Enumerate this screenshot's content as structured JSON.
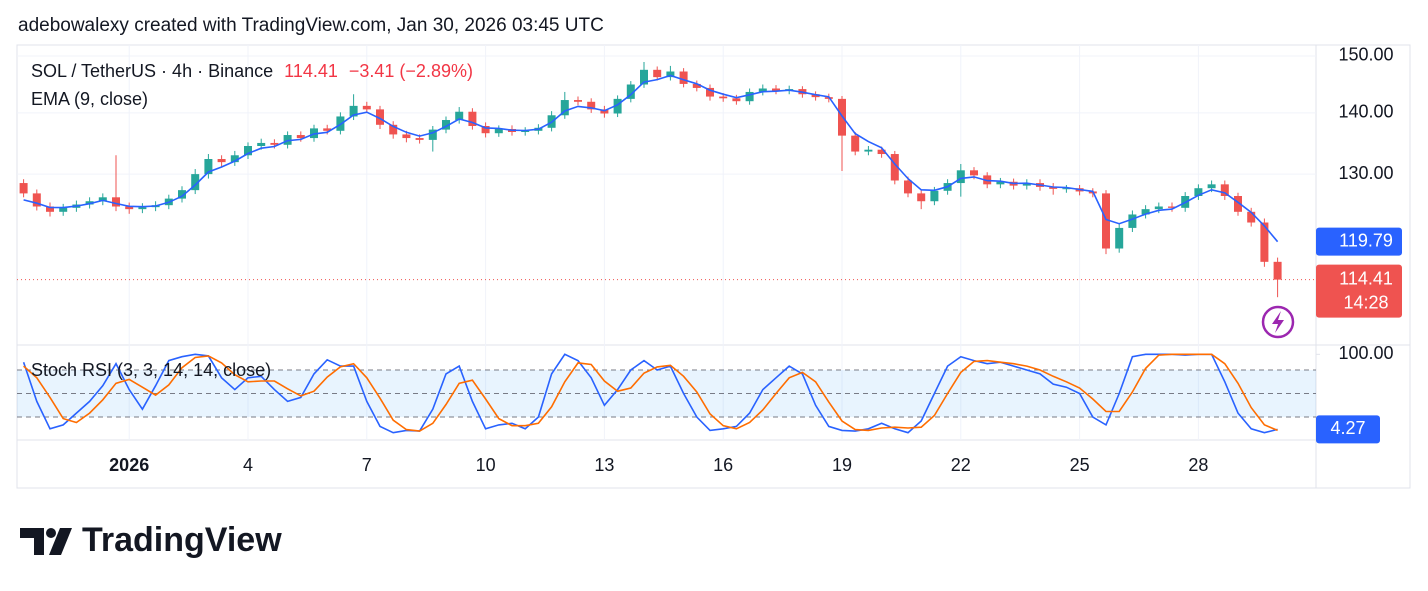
{
  "watermark": "adebowalexy created with TradingView.com, Jan 30, 2026 03:45 UTC",
  "brand": "TradingView",
  "chart_data": [
    {
      "type": "candlestick",
      "title": "SOL / TetherUS · 4h · Binance",
      "change": "−3.41 (−2.89%)",
      "countdown": "14:28",
      "log_scale": true,
      "grid": true,
      "up_color": "#26a69a",
      "down_color": "#ef5350",
      "categories": [
        null,
        null,
        null,
        null,
        null,
        null,
        null,
        null,
        "2026",
        null,
        null,
        null,
        null,
        null,
        null,
        null,
        null,
        "4",
        null,
        null,
        null,
        null,
        null,
        null,
        null,
        null,
        "7",
        null,
        null,
        null,
        null,
        null,
        null,
        null,
        null,
        "10",
        null,
        null,
        null,
        null,
        null,
        null,
        null,
        null,
        "13",
        null,
        null,
        null,
        null,
        null,
        null,
        null,
        null,
        "16",
        null,
        null,
        null,
        null,
        null,
        null,
        null,
        null,
        "19",
        null,
        null,
        null,
        null,
        null,
        null,
        null,
        null,
        "22",
        null,
        null,
        null,
        null,
        null,
        null,
        null,
        null,
        "25",
        null,
        null,
        null,
        null,
        null,
        null,
        null,
        null,
        "28",
        null,
        null,
        null,
        null,
        null,
        null
      ],
      "open": [
        128.6,
        127,
        125,
        124.2,
        124.8,
        125.3,
        125.8,
        126.4,
        125,
        124.6,
        124.9,
        125.2,
        126.2,
        127.5,
        130,
        132.4,
        131.9,
        133,
        134.5,
        135,
        134.7,
        136.3,
        135.8,
        137.4,
        137,
        139.4,
        141.2,
        140.6,
        138,
        136.4,
        135.8,
        135.5,
        137.2,
        138.8,
        140.2,
        137.8,
        136.6,
        137.3,
        136.8,
        137,
        137.5,
        139.6,
        142.2,
        141.9,
        140.6,
        139.9,
        142.4,
        144.9,
        147.5,
        146.2,
        147.2,
        145,
        144.3,
        142.8,
        142.5,
        142,
        143.6,
        144.2,
        143.8,
        144.1,
        143.2,
        142.7,
        142.4,
        136.2,
        133.6,
        133.9,
        133.2,
        129,
        127,
        125.8,
        127.4,
        128.6,
        130.6,
        129.8,
        128.4,
        128.8,
        128.2,
        128.6,
        128,
        127.7,
        127.8,
        127.3,
        127,
        118.8,
        121.8,
        123.8,
        124.6,
        125,
        124.8,
        126.6,
        127.8,
        128.4,
        126.6,
        124.2,
        122.6,
        116.9
      ],
      "high": [
        129.2,
        127.6,
        125.6,
        125.4,
        125.9,
        126.4,
        127,
        133,
        125.6,
        125.5,
        125.8,
        126.8,
        128.1,
        130.8,
        133.2,
        133,
        133.7,
        135.1,
        135.7,
        135.6,
        136.9,
        136.9,
        138,
        138,
        140.1,
        143.2,
        141.9,
        141.2,
        138.6,
        137,
        136.4,
        137.8,
        139.4,
        141,
        140.8,
        138.4,
        137.9,
        137.9,
        137.6,
        138.1,
        140.3,
        143.6,
        142.8,
        142.5,
        141.2,
        143,
        145.5,
        148.9,
        148.1,
        148.2,
        147.8,
        145.6,
        144.9,
        143.4,
        143.1,
        144.2,
        144.9,
        144.8,
        144.7,
        144.6,
        143.7,
        143.3,
        142.9,
        136.8,
        134.5,
        134.4,
        133.7,
        129.6,
        127.6,
        128,
        129.2,
        131.6,
        131.1,
        130.3,
        129.4,
        129.3,
        129.2,
        129.2,
        128.6,
        128.3,
        128.3,
        127.8,
        127.5,
        122.4,
        124.4,
        125.2,
        125.6,
        125.6,
        127.2,
        128.4,
        129,
        129,
        127.1,
        124.8,
        123.2,
        117.5
      ],
      "low": [
        126.4,
        124.4,
        123.5,
        123.6,
        124.2,
        124.7,
        125.2,
        124.3,
        123.9,
        124,
        124.3,
        124.6,
        125.6,
        126.9,
        129.3,
        131.2,
        131.3,
        132.4,
        133.9,
        134.1,
        134.1,
        135.2,
        135.2,
        136.4,
        136.4,
        138.8,
        140,
        137.3,
        135.7,
        135.1,
        134.9,
        133.6,
        136.6,
        138.2,
        137.2,
        135.9,
        136,
        136.2,
        136.2,
        136.4,
        136.9,
        139,
        141.3,
        140,
        139.2,
        139.3,
        141.8,
        144.3,
        145.6,
        145.6,
        144.4,
        143.7,
        142.1,
        141.9,
        141.4,
        141.4,
        143,
        143.2,
        143.2,
        142.6,
        142.1,
        141.8,
        130.5,
        133,
        133,
        132.6,
        128.4,
        126.4,
        124.6,
        125.2,
        126.8,
        126.5,
        129.2,
        127.8,
        127.8,
        127.6,
        127.6,
        127.4,
        126.8,
        127.1,
        126.7,
        126.4,
        118,
        118.2,
        121.2,
        123.2,
        124,
        124.2,
        124.2,
        126,
        127.2,
        126,
        123.6,
        122,
        116.2,
        112
      ],
      "close": [
        127,
        125,
        124.2,
        124.8,
        125.3,
        125.8,
        126.4,
        125,
        124.6,
        124.9,
        125.2,
        126.2,
        127.5,
        130,
        132.4,
        131.9,
        133,
        134.5,
        135,
        134.7,
        136.3,
        135.8,
        137.4,
        137,
        139.4,
        141.2,
        140.6,
        138,
        136.4,
        135.8,
        135.5,
        137.2,
        138.8,
        140.2,
        137.8,
        136.6,
        137.3,
        136.8,
        137,
        137.5,
        139.6,
        142.2,
        141.9,
        140.6,
        139.9,
        142.4,
        144.9,
        147.5,
        146.2,
        147.2,
        145,
        144.3,
        142.8,
        142.5,
        142,
        143.6,
        144.2,
        143.8,
        144.1,
        143.2,
        142.7,
        142.4,
        136.2,
        133.6,
        133.9,
        133.2,
        129,
        127,
        125.8,
        127.4,
        128.6,
        130.6,
        129.8,
        128.4,
        128.8,
        128.2,
        128.6,
        128,
        127.7,
        127.8,
        127.3,
        127,
        118.8,
        121.8,
        123.8,
        124.6,
        125,
        124.8,
        126.6,
        127.8,
        128.4,
        126.6,
        124.2,
        122.6,
        116.9,
        114.41
      ],
      "series": [
        {
          "name": "EMA (9, close)",
          "color": "#2962ff",
          "values": [
            126,
            125.5,
            124.85,
            124.83,
            125.06,
            125.43,
            125.92,
            125.46,
            125.03,
            124.97,
            125.08,
            125.64,
            126.57,
            128.29,
            130.34,
            131.12,
            132.06,
            133.28,
            134.14,
            134.42,
            135.36,
            135.58,
            136.49,
            136.75,
            138.07,
            139.64,
            140.12,
            139.06,
            137.73,
            136.76,
            136.13,
            136.67,
            137.73,
            138.97,
            138.38,
            137.49,
            137.4,
            137.1,
            137.05,
            137.27,
            138.44,
            140.32,
            141.11,
            140.85,
            140.38,
            141.39,
            143.14,
            145.32,
            145.76,
            146.48,
            145.74,
            145.02,
            143.91,
            143.21,
            142.6,
            143.1,
            143.65,
            143.73,
            143.91,
            143.56,
            143.13,
            142.76,
            139.48,
            136.54,
            135.22,
            134.21,
            131.6,
            129.3,
            127.55,
            127.48,
            128.04,
            129.32,
            129.56,
            128.98,
            128.89,
            128.55,
            128.57,
            128.29,
            127.99,
            127.9,
            127.6,
            127.3,
            123.05,
            122.42,
            123.11,
            123.86,
            124.43,
            124.61,
            125.61,
            126.7,
            127.55,
            127.08,
            125.64,
            124.12,
            122.1,
            119.79
          ]
        }
      ],
      "ylim": [
        105.7,
        152.0
      ],
      "yticks": [
        {
          "value": 130,
          "label": "130.00"
        },
        {
          "value": 140,
          "label": "140.00"
        },
        {
          "value": 150,
          "label": "150.00"
        }
      ]
    },
    {
      "type": "line",
      "title": "Stoch RSI (3, 3, 14, 14, close)",
      "band": [
        20,
        50,
        80
      ],
      "band_color": "#2196f3",
      "series": [
        {
          "color": "#2962ff",
          "values": [
            90,
            40,
            5,
            10,
            25,
            40,
            60,
            88,
            55,
            30,
            60,
            92,
            97,
            100,
            98,
            70,
            55,
            70,
            72,
            55,
            40,
            45,
            75,
            93,
            85,
            85,
            40,
            8,
            0,
            3,
            2,
            30,
            75,
            85,
            40,
            5,
            10,
            12,
            5,
            20,
            75,
            100,
            92,
            70,
            35,
            55,
            80,
            92,
            80,
            85,
            50,
            20,
            3,
            5,
            8,
            25,
            55,
            70,
            85,
            75,
            35,
            8,
            3,
            2,
            5,
            12,
            5,
            0,
            15,
            50,
            85,
            97,
            92,
            88,
            90,
            85,
            80,
            75,
            62,
            58,
            50,
            20,
            10,
            50,
            97,
            100,
            100,
            100,
            99,
            100,
            100,
            65,
            25,
            5,
            0,
            4.27
          ]
        },
        {
          "color": "#ff6d00",
          "values": [
            85,
            70,
            45,
            18,
            13,
            25,
            42,
            63,
            68,
            58,
            48,
            61,
            83,
            96,
            98,
            89,
            74,
            65,
            66,
            66,
            56,
            47,
            53,
            71,
            84,
            88,
            70,
            44,
            16,
            4,
            2,
            12,
            36,
            63,
            67,
            43,
            18,
            9,
            9,
            12,
            33,
            65,
            89,
            87,
            66,
            53,
            57,
            76,
            84,
            86,
            72,
            52,
            24,
            9,
            5,
            13,
            29,
            50,
            70,
            77,
            65,
            39,
            15,
            4,
            3,
            6,
            7,
            6,
            7,
            22,
            50,
            77,
            91,
            92,
            90,
            88,
            85,
            80,
            72,
            65,
            57,
            43,
            27,
            27,
            52,
            82,
            99,
            100,
            100,
            100,
            100,
            88,
            63,
            32,
            10,
            3
          ]
        }
      ],
      "ylim": [
        -9.3,
        111.9
      ],
      "yticks": [
        {
          "value": 100,
          "label": "100.00"
        }
      ]
    }
  ]
}
